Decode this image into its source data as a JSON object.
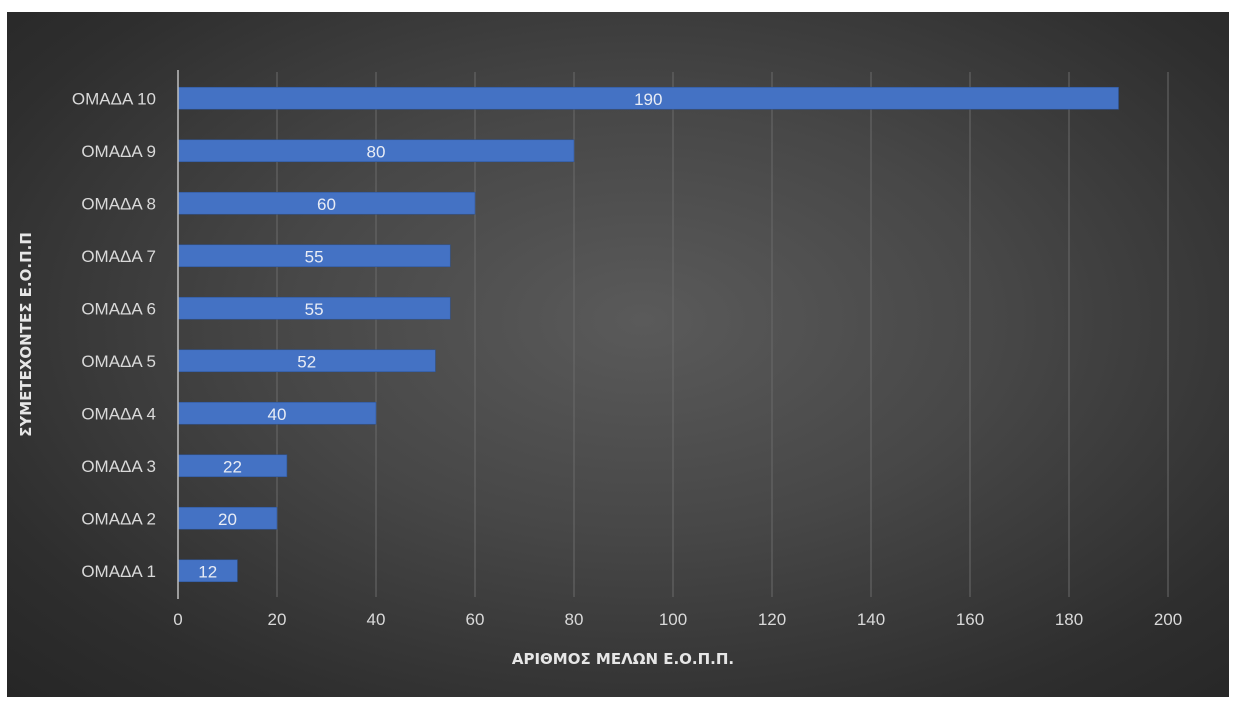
{
  "chart_data": {
    "type": "bar",
    "orientation": "horizontal",
    "categories": [
      "ΟΜΑΔΑ 1",
      "ΟΜΑΔΑ 2",
      "ΟΜΑΔΑ 3",
      "ΟΜΑΔΑ 4",
      "ΟΜΑΔΑ 5",
      "ΟΜΑΔΑ 6",
      "ΟΜΑΔΑ 7",
      "ΟΜΑΔΑ 8",
      "ΟΜΑΔΑ 9",
      "ΟΜΑΔΑ 10"
    ],
    "values": [
      12,
      20,
      22,
      40,
      52,
      55,
      55,
      60,
      80,
      190
    ],
    "xlabel": "ΑΡΙΘΜΟΣ ΜΕΛΩΝ Ε.Ο.Π.Π.",
    "ylabel": "ΣΥΜΕΤΕΧΟΝΤΕΣ Ε.Ο.Π.Π",
    "xlim": [
      0,
      200
    ],
    "xticks": [
      0,
      20,
      40,
      60,
      80,
      100,
      120,
      140,
      160,
      180,
      200
    ],
    "grid": true,
    "data_labels": true,
    "bar_color": "#4472c4",
    "background_color": "#404040"
  }
}
